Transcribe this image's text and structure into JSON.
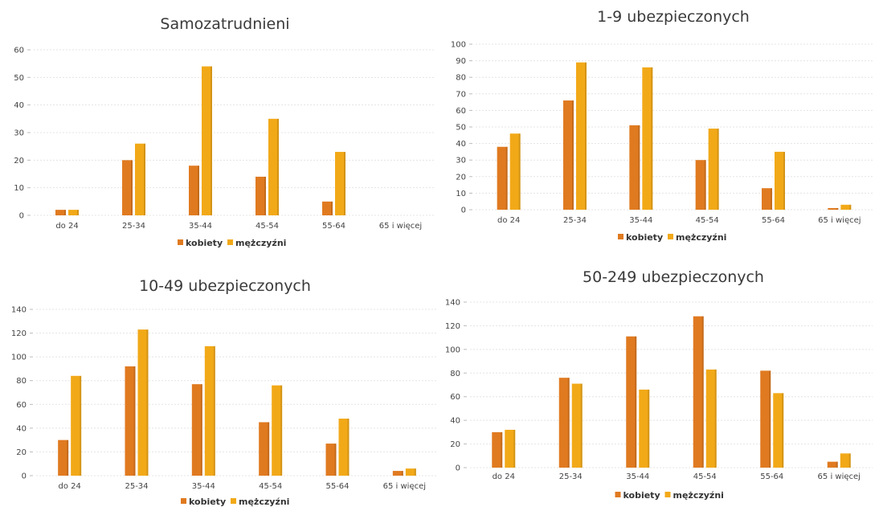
{
  "colors": {
    "kobiety": "#e07a20",
    "mezczyzni": "#f2a918"
  },
  "chart_data": [
    {
      "type": "bar",
      "title": "Samozatrudnieni",
      "categories": [
        "do 24",
        "25-34",
        "35-44",
        "45-54",
        "55-64",
        "65 i więcej"
      ],
      "series": [
        {
          "name": "kobiety",
          "values": [
            2,
            20,
            18,
            14,
            5,
            0
          ]
        },
        {
          "name": "mężczyźni",
          "values": [
            2,
            26,
            54,
            35,
            23,
            0
          ]
        }
      ],
      "ylim": [
        0,
        60
      ],
      "yticks": [
        0,
        10,
        20,
        30,
        40,
        50,
        60
      ],
      "grid": true,
      "legend": "bottom"
    },
    {
      "type": "bar",
      "title": "1-9 ubezpieczonych",
      "categories": [
        "do 24",
        "25-34",
        "35-44",
        "45-54",
        "55-64",
        "65 i więcej"
      ],
      "series": [
        {
          "name": "kobiety",
          "values": [
            38,
            66,
            51,
            30,
            13,
            1
          ]
        },
        {
          "name": "mężczyźni",
          "values": [
            46,
            89,
            86,
            49,
            35,
            3
          ]
        }
      ],
      "ylim": [
        0,
        100
      ],
      "yticks": [
        0,
        10,
        20,
        30,
        40,
        50,
        60,
        70,
        80,
        90,
        100
      ],
      "grid": true,
      "legend": "bottom"
    },
    {
      "type": "bar",
      "title": "10-49 ubezpieczonych",
      "categories": [
        "do 24",
        "25-34",
        "35-44",
        "45-54",
        "55-64",
        "65 i więcej"
      ],
      "series": [
        {
          "name": "kobiety",
          "values": [
            30,
            92,
            77,
            45,
            27,
            4
          ]
        },
        {
          "name": "mężczyźni",
          "values": [
            84,
            123,
            109,
            76,
            48,
            6
          ]
        }
      ],
      "ylim": [
        0,
        140
      ],
      "yticks": [
        0,
        20,
        40,
        60,
        80,
        100,
        120,
        140
      ],
      "grid": true,
      "legend": "bottom"
    },
    {
      "type": "bar",
      "title": "50-249 ubezpieczonych",
      "categories": [
        "do 24",
        "25-34",
        "35-44",
        "45-54",
        "55-64",
        "65 i więcej"
      ],
      "series": [
        {
          "name": "kobiety",
          "values": [
            30,
            76,
            111,
            128,
            82,
            5
          ]
        },
        {
          "name": "mężczyźni",
          "values": [
            32,
            71,
            66,
            83,
            63,
            12
          ]
        }
      ],
      "ylim": [
        0,
        140
      ],
      "yticks": [
        0,
        20,
        40,
        60,
        80,
        100,
        120,
        140
      ],
      "grid": true,
      "legend": "bottom"
    }
  ]
}
